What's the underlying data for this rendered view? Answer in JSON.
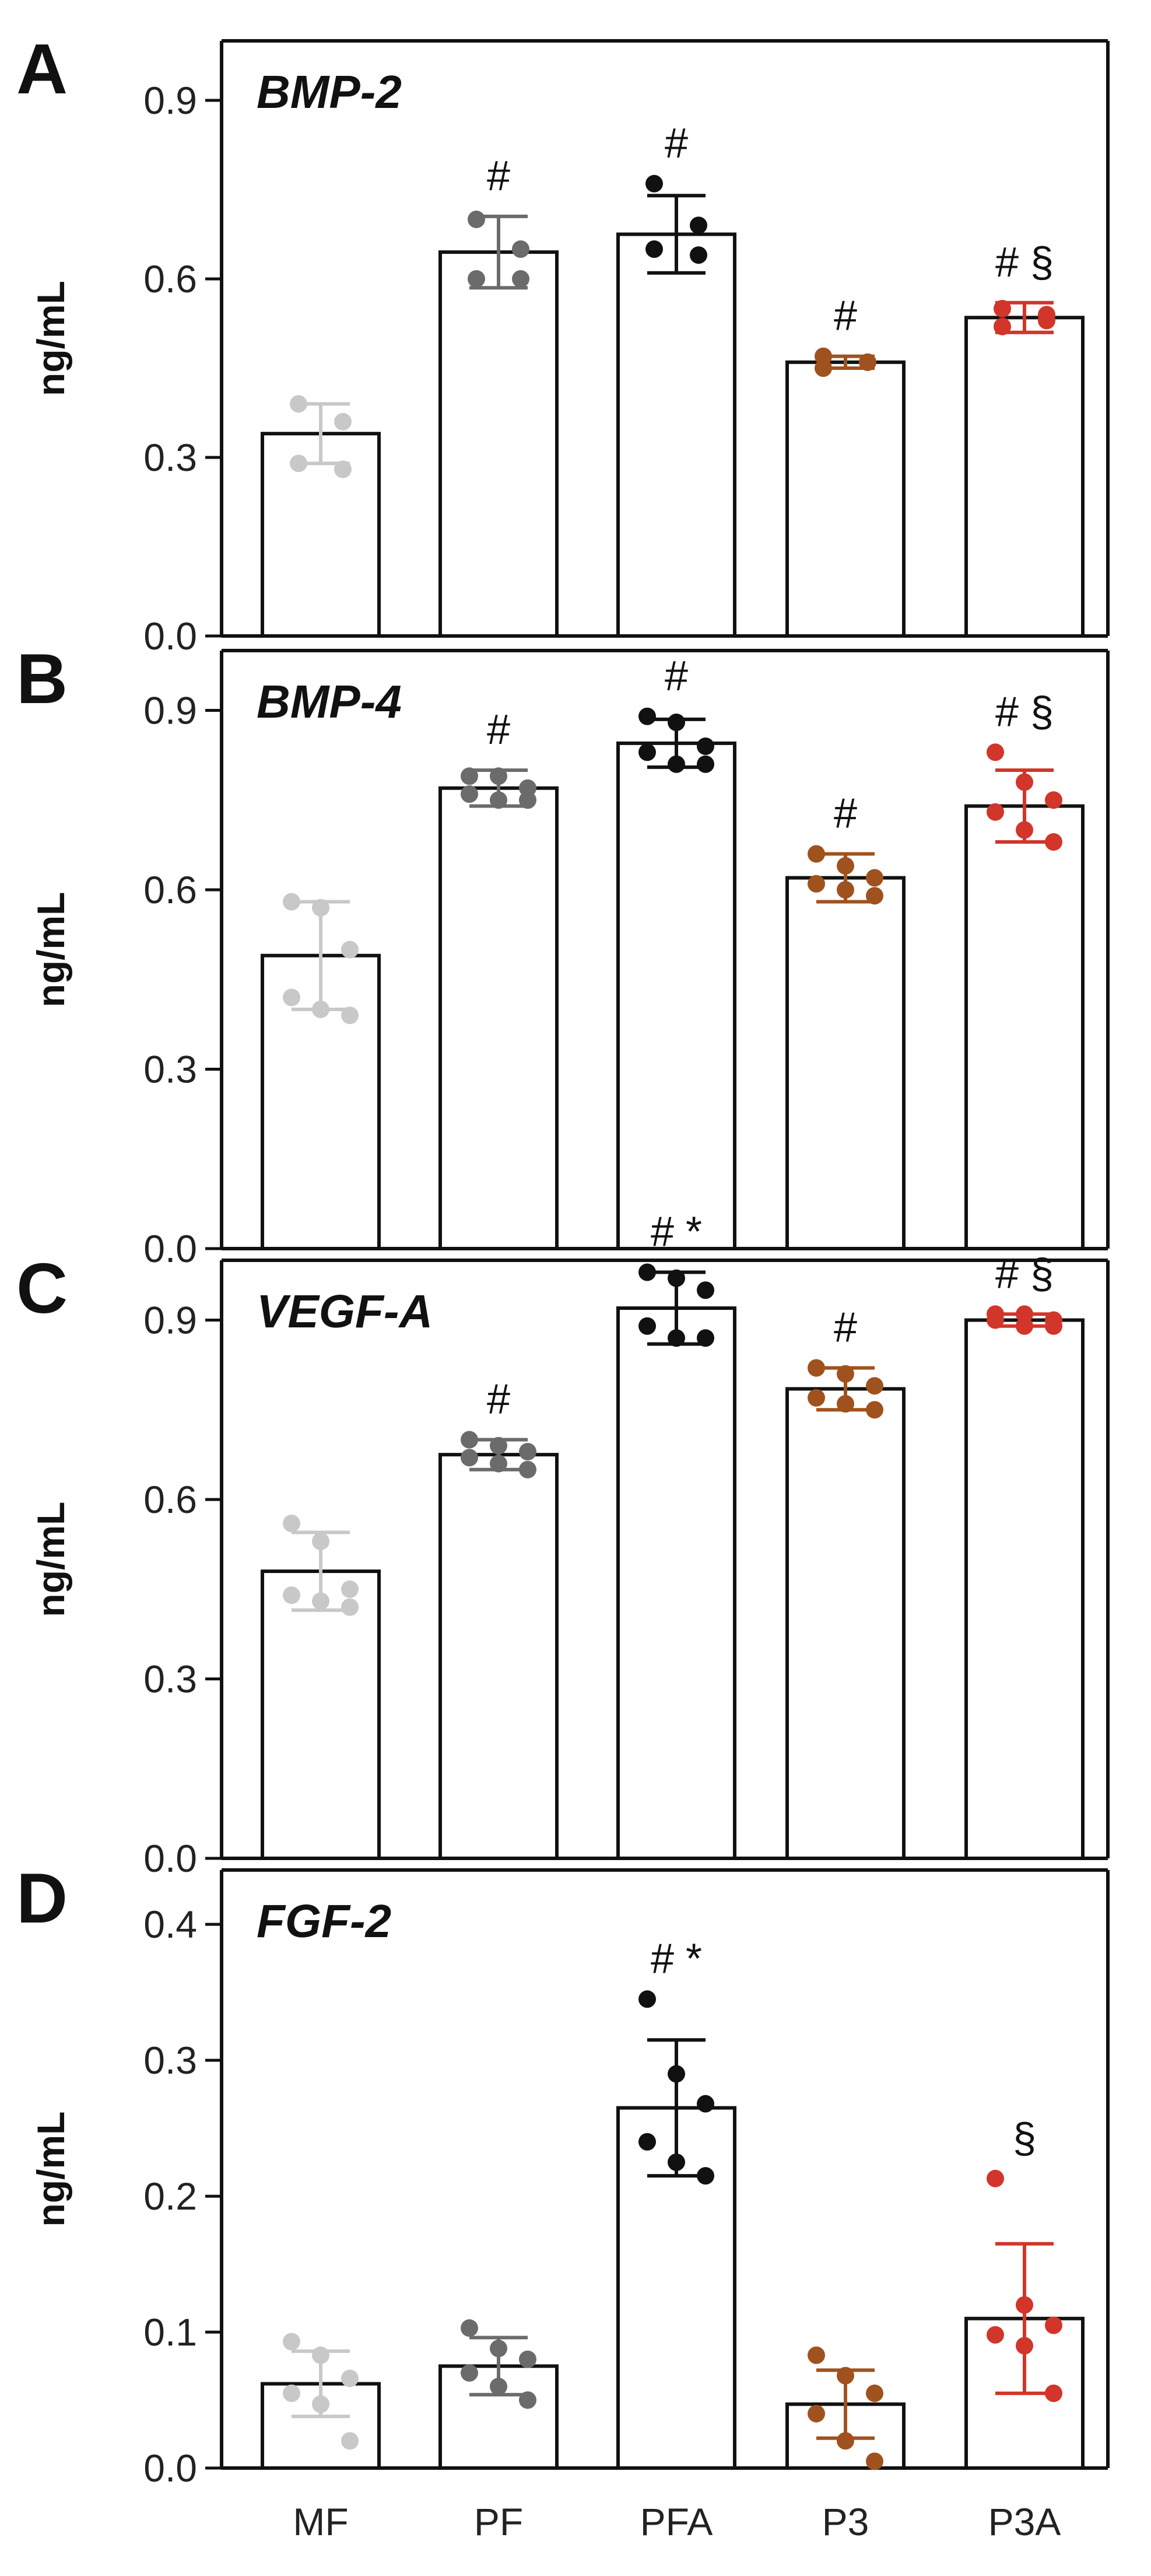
{
  "colors": {
    "MF": "#c8c8c8",
    "PF": "#6b6b6b",
    "PFA": "#111111",
    "P3": "#a0521e",
    "P3A": "#d2352a",
    "axis": "#111111"
  },
  "x_categories": [
    "MF",
    "PF",
    "PFA",
    "P3",
    "P3A"
  ],
  "chart_data": [
    {
      "type": "bar",
      "panel_letter": "A",
      "title": "BMP-2",
      "ylabel": "ng/mL",
      "ylim": [
        0,
        1.0
      ],
      "yticks": [
        "0.0",
        "0.3",
        "0.6",
        "0.9"
      ],
      "categories": [
        "MF",
        "PF",
        "PFA",
        "P3",
        "P3A"
      ],
      "values": [
        0.34,
        0.645,
        0.675,
        0.46,
        0.535
      ],
      "sd": [
        0.05,
        0.06,
        0.065,
        0.01,
        0.025
      ],
      "points": [
        [
          0.39,
          0.36,
          0.29,
          0.28
        ],
        [
          0.7,
          0.65,
          0.6,
          0.6
        ],
        [
          0.76,
          0.69,
          0.65,
          0.64
        ],
        [
          0.47,
          0.46,
          0.45,
          0.46
        ],
        [
          0.55,
          0.54,
          0.52,
          0.53
        ]
      ],
      "annotations": [
        "",
        "#",
        "#",
        "#",
        "# §"
      ]
    },
    {
      "type": "bar",
      "panel_letter": "B",
      "title": "BMP-4",
      "ylabel": "ng/mL",
      "ylim": [
        0,
        1.0
      ],
      "yticks": [
        "0.0",
        "0.3",
        "0.6",
        "0.9"
      ],
      "categories": [
        "MF",
        "PF",
        "PFA",
        "P3",
        "P3A"
      ],
      "values": [
        0.49,
        0.77,
        0.845,
        0.62,
        0.74
      ],
      "sd": [
        0.09,
        0.03,
        0.04,
        0.04,
        0.06
      ],
      "points": [
        [
          0.58,
          0.57,
          0.5,
          0.42,
          0.4,
          0.39
        ],
        [
          0.79,
          0.79,
          0.77,
          0.76,
          0.75,
          0.75
        ],
        [
          0.89,
          0.88,
          0.84,
          0.83,
          0.81,
          0.81
        ],
        [
          0.66,
          0.64,
          0.62,
          0.61,
          0.6,
          0.59
        ],
        [
          0.83,
          0.78,
          0.75,
          0.73,
          0.7,
          0.68
        ]
      ],
      "annotations": [
        "",
        "#",
        "#",
        "#",
        "# §"
      ]
    },
    {
      "type": "bar",
      "panel_letter": "C",
      "title": "VEGF-A",
      "ylabel": "ng/mL",
      "ylim": [
        0,
        1.0
      ],
      "yticks": [
        "0.0",
        "0.3",
        "0.6",
        "0.9"
      ],
      "categories": [
        "MF",
        "PF",
        "PFA",
        "P3",
        "P3A"
      ],
      "values": [
        0.48,
        0.675,
        0.92,
        0.785,
        0.9
      ],
      "sd": [
        0.065,
        0.025,
        0.06,
        0.035,
        0.01
      ],
      "points": [
        [
          0.56,
          0.53,
          0.45,
          0.44,
          0.43,
          0.42
        ],
        [
          0.7,
          0.69,
          0.68,
          0.67,
          0.66,
          0.65
        ],
        [
          0.98,
          0.97,
          0.95,
          0.89,
          0.87,
          0.87
        ],
        [
          0.82,
          0.81,
          0.79,
          0.77,
          0.76,
          0.75
        ],
        [
          0.91,
          0.91,
          0.9,
          0.9,
          0.89,
          0.89
        ]
      ],
      "annotations": [
        "",
        "#",
        "# *",
        "#",
        "# §"
      ]
    },
    {
      "type": "bar",
      "panel_letter": "D",
      "title": "FGF-2",
      "ylabel": "ng/mL",
      "ylim": [
        0,
        0.44
      ],
      "yticks": [
        "0.0",
        "0.1",
        "0.2",
        "0.3",
        "0.4"
      ],
      "categories": [
        "MF",
        "PF",
        "PFA",
        "P3",
        "P3A"
      ],
      "values": [
        0.062,
        0.075,
        0.265,
        0.047,
        0.11
      ],
      "sd": [
        0.024,
        0.021,
        0.05,
        0.025,
        0.055
      ],
      "points": [
        [
          0.093,
          0.083,
          0.066,
          0.055,
          0.047,
          0.02
        ],
        [
          0.103,
          0.088,
          0.08,
          0.07,
          0.06,
          0.05
        ],
        [
          0.345,
          0.29,
          0.268,
          0.24,
          0.225,
          0.215
        ],
        [
          0.083,
          0.068,
          0.055,
          0.04,
          0.02,
          0.005
        ],
        [
          0.213,
          0.12,
          0.105,
          0.098,
          0.09,
          0.055
        ]
      ],
      "annotations": [
        "",
        "",
        "# *",
        "",
        "§"
      ]
    }
  ]
}
